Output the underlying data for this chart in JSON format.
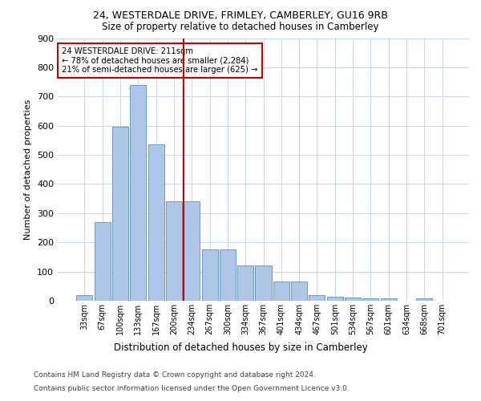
{
  "title": "24, WESTERDALE DRIVE, FRIMLEY, CAMBERLEY, GU16 9RB",
  "subtitle": "Size of property relative to detached houses in Camberley",
  "xlabel": "Distribution of detached houses by size in Camberley",
  "ylabel": "Number of detached properties",
  "categories": [
    "33sqm",
    "67sqm",
    "100sqm",
    "133sqm",
    "167sqm",
    "200sqm",
    "234sqm",
    "267sqm",
    "300sqm",
    "334sqm",
    "367sqm",
    "401sqm",
    "434sqm",
    "467sqm",
    "501sqm",
    "534sqm",
    "567sqm",
    "601sqm",
    "634sqm",
    "668sqm",
    "701sqm"
  ],
  "values": [
    20,
    270,
    595,
    740,
    535,
    340,
    340,
    175,
    175,
    120,
    120,
    65,
    65,
    20,
    15,
    10,
    8,
    8,
    0,
    8,
    0
  ],
  "bar_color": "#aec6e8",
  "bar_edge_color": "#5a8fc2",
  "background_color": "#ffffff",
  "grid_color": "#c8d8ea",
  "vline_x": 5.54,
  "vline_color": "#cc0000",
  "annotation_line1": "24 WESTERDALE DRIVE: 211sqm",
  "annotation_line2": "← 78% of detached houses are smaller (2,284)",
  "annotation_line3": "21% of semi-detached houses are larger (625) →",
  "annotation_box_color": "#cc0000",
  "ylim": [
    0,
    900
  ],
  "yticks": [
    0,
    100,
    200,
    300,
    400,
    500,
    600,
    700,
    800,
    900
  ],
  "footer_line1": "Contains HM Land Registry data © Crown copyright and database right 2024.",
  "footer_line2": "Contains public sector information licensed under the Open Government Licence v3.0."
}
